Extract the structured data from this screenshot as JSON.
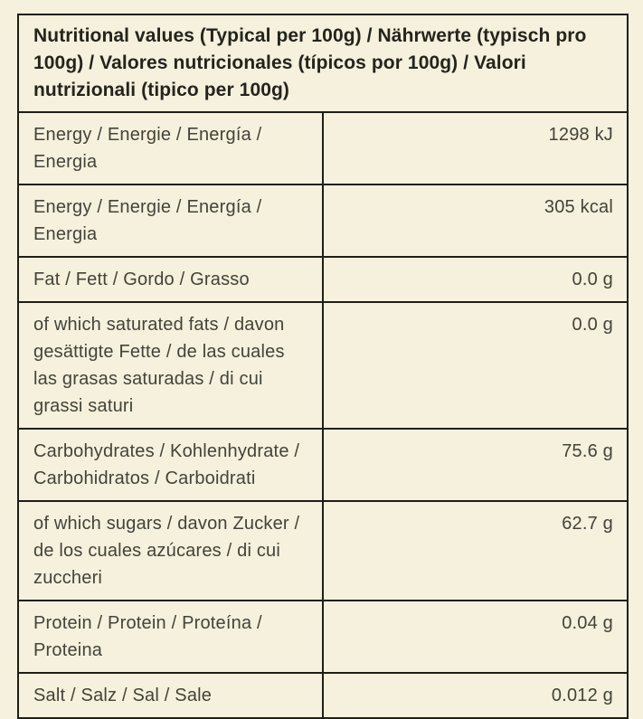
{
  "colors": {
    "background": "#f5f1dc",
    "border": "#1e1e17",
    "title_text": "#24241d",
    "body_text": "#43433a"
  },
  "table": {
    "title": "Nutritional values (Typical per 100g) / Nährwerte (typisch pro 100g) / Valores nutricionales (típicos por 100g) / Valori nutrizionali (tipico per 100g)",
    "rows": [
      {
        "label": "Energy / Energie / Energía / Energia",
        "value": "1298 kJ"
      },
      {
        "label": "Energy / Energie / Energía / Energia",
        "value": "305 kcal"
      },
      {
        "label": "Fat / Fett / Gordo / Grasso",
        "value": "0.0 g"
      },
      {
        "label": "of which saturated fats / davon gesättigte Fette / de las cuales las grasas saturadas / di cui grassi saturi",
        "value": "0.0 g"
      },
      {
        "label": "Carbohydrates / Kohlenhydrate / Carbohidratos / Carboidrati",
        "value": "75.6 g"
      },
      {
        "label": "of which sugars / davon Zucker / de los cuales azúcares / di cui zuccheri",
        "value": "62.7 g"
      },
      {
        "label": "Protein / Protein / Proteína / Proteina",
        "value": "0.04 g"
      },
      {
        "label": "Salt / Salz / Sal / Sale",
        "value": "0.012 g"
      }
    ]
  }
}
